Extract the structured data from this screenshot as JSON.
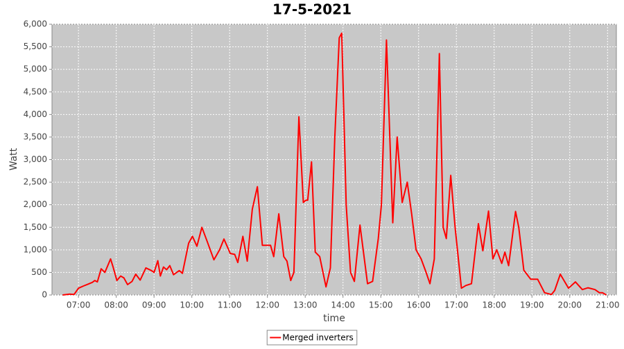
{
  "chart_data": {
    "type": "line",
    "title": "17-5-2021",
    "x_label": "time",
    "y_label": "Watt",
    "x": [
      "06:35",
      "06:46",
      "06:53",
      "07:00",
      "07:08",
      "07:15",
      "07:22",
      "07:26",
      "07:30",
      "07:36",
      "07:42",
      "07:51",
      "07:55",
      "08:01",
      "08:07",
      "08:12",
      "08:18",
      "08:25",
      "08:31",
      "08:38",
      "08:47",
      "08:56",
      "09:00",
      "09:06",
      "09:10",
      "09:15",
      "09:20",
      "09:25",
      "09:31",
      "09:40",
      "09:45",
      "09:55",
      "10:01",
      "10:08",
      "10:16",
      "10:24",
      "10:35",
      "10:44",
      "10:51",
      "11:01",
      "11:08",
      "11:13",
      "11:21",
      "11:28",
      "11:36",
      "11:44",
      "11:52",
      "11:58",
      "12:05",
      "12:10",
      "12:18",
      "12:26",
      "12:31",
      "12:37",
      "12:42",
      "12:50",
      "12:57",
      "13:01",
      "13:04",
      "13:10",
      "13:16",
      "13:23",
      "13:33",
      "13:40",
      "13:47",
      "13:54",
      "13:58",
      "14:05",
      "14:12",
      "14:18",
      "14:27",
      "14:32",
      "14:39",
      "14:47",
      "14:56",
      "15:01",
      "15:09",
      "15:19",
      "15:26",
      "15:34",
      "15:42",
      "15:49",
      "15:56",
      "16:04",
      "16:12",
      "16:18",
      "16:25",
      "16:33",
      "16:39",
      "16:44",
      "16:51",
      "16:58",
      "17:08",
      "17:15",
      "17:24",
      "17:35",
      "17:42",
      "17:51",
      "17:58",
      "18:04",
      "18:12",
      "18:17",
      "18:23",
      "18:34",
      "18:39",
      "18:47",
      "18:58",
      "19:09",
      "19:20",
      "19:31",
      "19:36",
      "19:45",
      "19:58",
      "20:09",
      "20:20",
      "20:29",
      "20:40",
      "20:47",
      "20:52",
      "20:58"
    ],
    "series": [
      {
        "name": "Merged inverters",
        "color": "#ff0000",
        "values": [
          0,
          20,
          10,
          150,
          200,
          240,
          280,
          320,
          290,
          580,
          500,
          800,
          620,
          320,
          420,
          380,
          230,
          300,
          460,
          330,
          600,
          540,
          500,
          760,
          420,
          620,
          560,
          650,
          450,
          540,
          480,
          1150,
          1300,
          1080,
          1500,
          1200,
          780,
          1000,
          1240,
          920,
          900,
          720,
          1300,
          750,
          1900,
          2400,
          1100,
          1100,
          1100,
          850,
          1800,
          850,
          750,
          320,
          500,
          3950,
          2050,
          2100,
          2100,
          2950,
          950,
          850,
          180,
          600,
          3500,
          5700,
          5800,
          2000,
          500,
          300,
          1550,
          1000,
          250,
          300,
          1250,
          2000,
          5650,
          1600,
          3500,
          2050,
          2500,
          1800,
          1000,
          800,
          500,
          250,
          800,
          5350,
          1500,
          1250,
          2650,
          1500,
          150,
          210,
          250,
          1580,
          980,
          1860,
          800,
          1000,
          700,
          950,
          650,
          1850,
          1500,
          550,
          350,
          350,
          50,
          10,
          100,
          460,
          150,
          290,
          120,
          160,
          120,
          50,
          50,
          0
        ]
      }
    ],
    "xlim": [
      "06:18",
      "21:14"
    ],
    "xticks": [
      "07:00",
      "08:00",
      "09:00",
      "10:00",
      "11:00",
      "12:00",
      "13:00",
      "14:00",
      "15:00",
      "16:00",
      "17:00",
      "18:00",
      "19:00",
      "20:00",
      "21:00"
    ],
    "ylim": [
      0,
      6000
    ],
    "yticks": [
      0,
      500,
      {
        "value": 1000,
        "label": "1,000"
      },
      {
        "value": 1500,
        "label": "1,500"
      },
      {
        "value": 2000,
        "label": "2,000"
      },
      {
        "value": 2500,
        "label": "2,500"
      },
      {
        "value": 3000,
        "label": "3,000"
      },
      {
        "value": 3500,
        "label": "3,500"
      },
      {
        "value": 4000,
        "label": "4,000"
      },
      {
        "value": 4500,
        "label": "4,500"
      },
      {
        "value": 5000,
        "label": "5,000"
      },
      {
        "value": 5500,
        "label": "5,500"
      },
      {
        "value": 6000,
        "label": "6,000"
      }
    ],
    "grid": true,
    "legend": "bottom"
  }
}
